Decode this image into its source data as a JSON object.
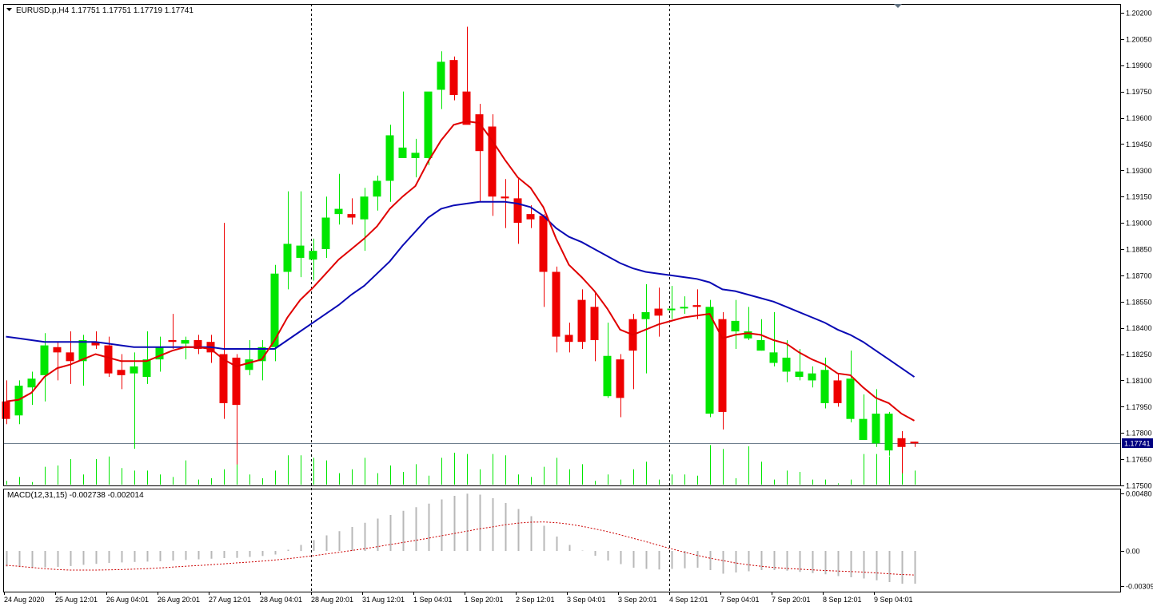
{
  "header": {
    "dropdown_icon": "triangle-down-icon",
    "symbol_label": "EURUSD.p,H4",
    "ohlc_label": "1.17751 1.17751 1.17719 1.17741"
  },
  "macd": {
    "label": "MACD(12,31,15) -0.002738 -0.002014",
    "signal_color": "#cc0000",
    "hist_color": "#b8b8b8"
  },
  "colors": {
    "bull": "#00e600",
    "bear": "#ee0000",
    "ma_fast": "#e00000",
    "ma_slow": "#0a0ab4",
    "frame": "#000000",
    "current_price_bg": "#000080",
    "current_price_text": "#ffffff"
  },
  "chart_data": [
    {
      "type": "candlestick",
      "symbol": "EURUSD.p",
      "timeframe": "H4",
      "ylim": [
        1.175,
        1.2025
      ],
      "y_ticks": [
        "1.20200",
        "1.20050",
        "1.19900",
        "1.19750",
        "1.19600",
        "1.19450",
        "1.19300",
        "1.19150",
        "1.19000",
        "1.18850",
        "1.18700",
        "1.18550",
        "1.18400",
        "1.18250",
        "1.18100",
        "1.17950",
        "1.17800",
        "1.17650",
        "1.17500"
      ],
      "x_tick_labels": [
        "24 Aug 2020",
        "25 Aug 12:01",
        "26 Aug 04:01",
        "26 Aug 20:01",
        "27 Aug 12:01",
        "28 Aug 04:01",
        "28 Aug 20:01",
        "31 Aug 12:01",
        "1 Sep 04:01",
        "1 Sep 20:01",
        "2 Sep 12:01",
        "3 Sep 04:01",
        "3 Sep 20:01",
        "4 Sep 12:01",
        "7 Sep 04:01",
        "7 Sep 20:01",
        "8 Sep 12:01",
        "9 Sep 04:01"
      ],
      "current_price": "1.17741",
      "period_separators": [
        "28 Aug 20:01",
        "4 Sep 12:01"
      ],
      "candles": [
        [
          1.1798,
          1.181,
          1.1785,
          1.1788
        ],
        [
          1.179,
          1.181,
          1.1785,
          1.1807
        ],
        [
          1.1806,
          1.1815,
          1.1796,
          1.1811
        ],
        [
          1.1813,
          1.1837,
          1.1798,
          1.183
        ],
        [
          1.1829,
          1.1832,
          1.181,
          1.1826
        ],
        [
          1.1826,
          1.1838,
          1.1808,
          1.1821
        ],
        [
          1.1821,
          1.1836,
          1.1807,
          1.1833
        ],
        [
          1.1832,
          1.1838,
          1.1828,
          1.183
        ],
        [
          1.183,
          1.1835,
          1.1812,
          1.1814
        ],
        [
          1.1816,
          1.1825,
          1.1805,
          1.1813
        ],
        [
          1.1814,
          1.1826,
          1.1771,
          1.1818
        ],
        [
          1.1812,
          1.1838,
          1.1808,
          1.1822
        ],
        [
          1.1822,
          1.1835,
          1.1815,
          1.1829
        ],
        [
          1.1833,
          1.1848,
          1.1828,
          1.1832
        ],
        [
          1.1831,
          1.1835,
          1.1822,
          1.1833
        ],
        [
          1.1833,
          1.1836,
          1.1825,
          1.1828
        ],
        [
          1.1832,
          1.1836,
          1.182,
          1.1826
        ],
        [
          1.1825,
          1.19,
          1.1788,
          1.1797
        ],
        [
          1.1823,
          1.1825,
          1.1762,
          1.1796
        ],
        [
          1.1816,
          1.1833,
          1.1813,
          1.1822
        ],
        [
          1.1821,
          1.1833,
          1.181,
          1.1829
        ],
        [
          1.1829,
          1.1876,
          1.1821,
          1.1871
        ],
        [
          1.1872,
          1.1918,
          1.1862,
          1.1888
        ],
        [
          1.188,
          1.1918,
          1.1869,
          1.1887
        ],
        [
          1.1879,
          1.1891,
          1.1867,
          1.1884
        ],
        [
          1.1885,
          1.1915,
          1.188,
          1.1903
        ],
        [
          1.1905,
          1.1928,
          1.1899,
          1.1908
        ],
        [
          1.1905,
          1.1914,
          1.1899,
          1.1903
        ],
        [
          1.1902,
          1.192,
          1.1884,
          1.1915
        ],
        [
          1.1915,
          1.1927,
          1.1907,
          1.1924
        ],
        [
          1.1924,
          1.1956,
          1.1912,
          1.195
        ],
        [
          1.1937,
          1.1975,
          1.1937,
          1.1943
        ],
        [
          1.1937,
          1.1948,
          1.1926,
          1.194
        ],
        [
          1.1937,
          1.1974,
          1.1933,
          1.1975
        ],
        [
          1.1976,
          1.1998,
          1.1965,
          1.1992
        ],
        [
          1.1993,
          1.1995,
          1.197,
          1.1973
        ],
        [
          1.1975,
          1.2012,
          1.1957,
          1.1956
        ],
        [
          1.1962,
          1.1968,
          1.1912,
          1.1941
        ],
        [
          1.1955,
          1.1962,
          1.1904,
          1.1915
        ],
        [
          1.1915,
          1.1925,
          1.1897,
          1.1914
        ],
        [
          1.1914,
          1.1925,
          1.1888,
          1.19
        ],
        [
          1.1905,
          1.191,
          1.1897,
          1.1902
        ],
        [
          1.1904,
          1.1905,
          1.1852,
          1.1872
        ],
        [
          1.1872,
          1.1875,
          1.1826,
          1.1835
        ],
        [
          1.1836,
          1.1843,
          1.1826,
          1.1832
        ],
        [
          1.1856,
          1.1862,
          1.1828,
          1.1832
        ],
        [
          1.1852,
          1.186,
          1.1821,
          1.1833
        ],
        [
          1.1801,
          1.1843,
          1.18,
          1.1824
        ],
        [
          1.1822,
          1.1825,
          1.1789,
          1.18
        ],
        [
          1.1845,
          1.1848,
          1.1805,
          1.1827
        ],
        [
          1.1845,
          1.1865,
          1.1814,
          1.1849
        ],
        [
          1.1851,
          1.1863,
          1.1835,
          1.1847
        ],
        [
          1.1851,
          1.1864,
          1.1845,
          1.1851
        ],
        [
          1.1852,
          1.1858,
          1.1848,
          1.1852
        ],
        [
          1.1853,
          1.1862,
          1.1845,
          1.1852
        ],
        [
          1.1791,
          1.1856,
          1.1789,
          1.1852
        ],
        [
          1.1845,
          1.1849,
          1.1782,
          1.1792
        ],
        [
          1.1838,
          1.1856,
          1.1828,
          1.1844
        ],
        [
          1.1834,
          1.1852,
          1.1833,
          1.1838
        ],
        [
          1.1827,
          1.1845,
          1.1827,
          1.1833
        ],
        [
          1.182,
          1.1849,
          1.1818,
          1.1826
        ],
        [
          1.1815,
          1.1833,
          1.1809,
          1.1823
        ],
        [
          1.1812,
          1.1828,
          1.181,
          1.1815
        ],
        [
          1.181,
          1.1818,
          1.1806,
          1.1814
        ],
        [
          1.1797,
          1.1823,
          1.1794,
          1.1816
        ],
        [
          1.181,
          1.1814,
          1.1795,
          1.1797
        ],
        [
          1.1788,
          1.1827,
          1.1786,
          1.1811
        ],
        [
          1.1776,
          1.1802,
          1.1776,
          1.1788
        ],
        [
          1.1774,
          1.1805,
          1.1772,
          1.1791
        ],
        [
          1.177,
          1.1792,
          1.1767,
          1.1791
        ],
        [
          1.1777,
          1.1781,
          1.1757,
          1.1772
        ],
        [
          1.1775,
          1.1775,
          1.1772,
          1.1774
        ]
      ],
      "ma_fast": [
        1.1798,
        1.1799,
        1.1803,
        1.1812,
        1.1817,
        1.1819,
        1.1822,
        1.1825,
        1.1823,
        1.1821,
        1.1821,
        1.1821,
        1.1824,
        1.1827,
        1.1829,
        1.1829,
        1.1828,
        1.1822,
        1.1818,
        1.182,
        1.1822,
        1.1833,
        1.1846,
        1.1856,
        1.1863,
        1.1871,
        1.1879,
        1.1885,
        1.1891,
        1.1898,
        1.1908,
        1.1915,
        1.1921,
        1.1935,
        1.1947,
        1.1956,
        1.1958,
        1.1957,
        1.1947,
        1.1936,
        1.1926,
        1.192,
        1.1909,
        1.1891,
        1.1876,
        1.1869,
        1.1861,
        1.1851,
        1.1839,
        1.1836,
        1.1839,
        1.1842,
        1.1844,
        1.1846,
        1.1847,
        1.1848,
        1.1834,
        1.1836,
        1.1837,
        1.1836,
        1.1833,
        1.1831,
        1.1826,
        1.1822,
        1.1819,
        1.1814,
        1.1813,
        1.1806,
        1.18,
        1.1797,
        1.1791,
        1.1787
      ],
      "ma_slow": [
        1.1835,
        1.1834,
        1.1833,
        1.1832,
        1.1832,
        1.1832,
        1.1832,
        1.1832,
        1.1831,
        1.183,
        1.1829,
        1.1829,
        1.1829,
        1.1829,
        1.1829,
        1.1829,
        1.1829,
        1.1828,
        1.1828,
        1.1828,
        1.1828,
        1.1828,
        1.1833,
        1.1838,
        1.1843,
        1.1848,
        1.1853,
        1.1859,
        1.1864,
        1.1871,
        1.1878,
        1.1887,
        1.1895,
        1.1903,
        1.1908,
        1.191,
        1.1911,
        1.1912,
        1.1912,
        1.1912,
        1.1911,
        1.1909,
        1.1904,
        1.1897,
        1.1892,
        1.1889,
        1.1885,
        1.1881,
        1.1877,
        1.1874,
        1.1872,
        1.1871,
        1.187,
        1.1869,
        1.1868,
        1.1866,
        1.1862,
        1.1861,
        1.1859,
        1.1857,
        1.1855,
        1.1852,
        1.1849,
        1.1846,
        1.1843,
        1.1839,
        1.1836,
        1.1832,
        1.1827,
        1.1822,
        1.1817,
        1.1812
      ],
      "volume_ticks": [
        3,
        6,
        2,
        14,
        15,
        20,
        8,
        20,
        22,
        13,
        11,
        11,
        8,
        6,
        19,
        4,
        5,
        12,
        22,
        8,
        5,
        11,
        23,
        23,
        21,
        19,
        9,
        12,
        21,
        9,
        15,
        10,
        16,
        7,
        21,
        25,
        24,
        12,
        24,
        23,
        8,
        6,
        14,
        21,
        12,
        16,
        3,
        8,
        4,
        12,
        18,
        4,
        8,
        8,
        7,
        31,
        28,
        5,
        30,
        18,
        4,
        11,
        10,
        4,
        4,
        1,
        4,
        24,
        24,
        22,
        17,
        11
      ]
    },
    {
      "type": "bar",
      "name": "MACD(12,31,15)",
      "ylim": [
        -0.00309,
        0.0048
      ],
      "y_ticks": [
        "0.00480",
        "0.00",
        "-0.00309"
      ],
      "histogram": [
        -0.0013,
        -0.00135,
        -0.0014,
        -0.00138,
        -0.00133,
        -0.00126,
        -0.00116,
        -0.00108,
        -0.001,
        -0.00096,
        -0.00092,
        -0.00089,
        -0.00086,
        -0.0008,
        -0.00075,
        -0.0007,
        -0.00065,
        -0.0006,
        -0.00058,
        -0.0005,
        -0.00042,
        -0.0003,
        0.0001,
        0.0005,
        0.0009,
        0.0013,
        0.00165,
        0.002,
        0.00235,
        0.0027,
        0.003,
        0.00335,
        0.00365,
        0.00395,
        0.0043,
        0.0046,
        0.00478,
        0.0047,
        0.0044,
        0.004,
        0.0035,
        0.0029,
        0.0021,
        0.0012,
        0.0005,
        3e-05,
        -0.0004,
        -0.0008,
        -0.0011,
        -0.0014,
        -0.0015,
        -0.00155,
        -0.0015,
        -0.00145,
        -0.0014,
        -0.0016,
        -0.0019,
        -0.0018,
        -0.0017,
        -0.0016,
        -0.0016,
        -0.00165,
        -0.00175,
        -0.00185,
        -0.00195,
        -0.0021,
        -0.0022,
        -0.0023,
        -0.00245,
        -0.0026,
        -0.00274,
        -0.00274
      ],
      "signal": [
        -0.0012,
        -0.00128,
        -0.00138,
        -0.00148,
        -0.00155,
        -0.0016,
        -0.0016,
        -0.0016,
        -0.00158,
        -0.00156,
        -0.00152,
        -0.00148,
        -0.00142,
        -0.00135,
        -0.00128,
        -0.00122,
        -0.00115,
        -0.00108,
        -0.001,
        -0.00093,
        -0.00085,
        -0.00076,
        -0.00065,
        -0.00053,
        -0.0004,
        -0.00026,
        -0.00012,
        3e-05,
        0.00018,
        0.00035,
        0.00053,
        0.0007,
        0.00088,
        0.00106,
        0.00126,
        0.00145,
        0.00165,
        0.00185,
        0.002,
        0.00218,
        0.00232,
        0.0024,
        0.00242,
        0.00236,
        0.00224,
        0.00206,
        0.00185,
        0.00162,
        0.00135,
        0.00106,
        0.00078,
        0.00048,
        0.00018,
        -0.0001,
        -0.00036,
        -0.0006,
        -0.0008,
        -0.001,
        -0.00115,
        -0.00128,
        -0.00138,
        -0.00146,
        -0.00152,
        -0.00158,
        -0.00163,
        -0.00168,
        -0.00172,
        -0.00177,
        -0.00183,
        -0.0019,
        -0.00197,
        -0.00201
      ]
    }
  ]
}
